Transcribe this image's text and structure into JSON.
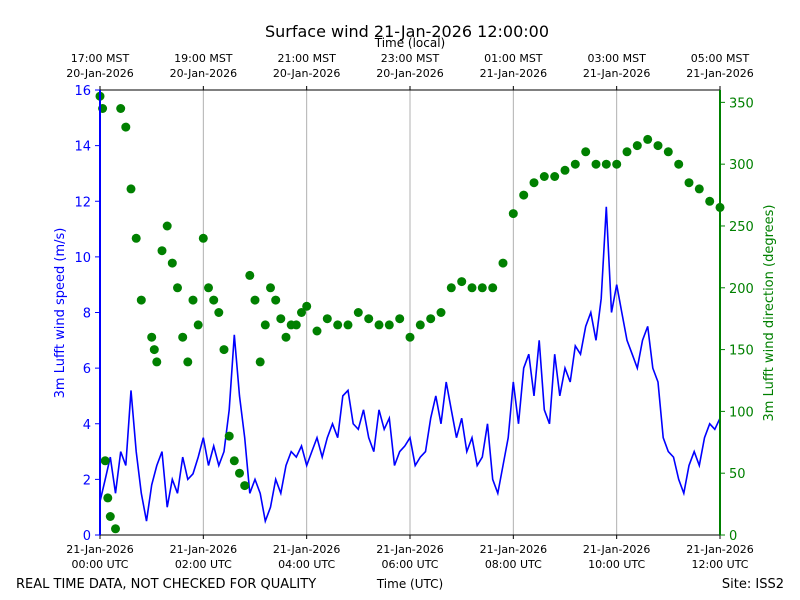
{
  "chart_data": {
    "type": "line+scatter",
    "title": "Surface wind 21-Jan-2026 12:00:00",
    "top_axis_label": "Time (local)",
    "xlabel": "Time (UTC)",
    "ylabel_left": "3m Lufft wind speed (m/s)",
    "ylabel_right": "3m Lufft wind direction (degrees)",
    "xlim_hours": [
      0,
      12
    ],
    "ylim_left": [
      0,
      16
    ],
    "ylim_right": [
      0,
      360
    ],
    "yticks_left": [
      "0",
      "2",
      "4",
      "6",
      "8",
      "10",
      "12",
      "14",
      "16"
    ],
    "yticks_right": [
      "0",
      "50",
      "100",
      "150",
      "200",
      "250",
      "300",
      "350"
    ],
    "grid": "vertical",
    "bottom_ticks": [
      {
        "l1": "21-Jan-2026",
        "l2": "00:00 UTC"
      },
      {
        "l1": "21-Jan-2026",
        "l2": "02:00 UTC"
      },
      {
        "l1": "21-Jan-2026",
        "l2": "04:00 UTC"
      },
      {
        "l1": "21-Jan-2026",
        "l2": "06:00 UTC"
      },
      {
        "l1": "21-Jan-2026",
        "l2": "08:00 UTC"
      },
      {
        "l1": "21-Jan-2026",
        "l2": "10:00 UTC"
      },
      {
        "l1": "21-Jan-2026",
        "l2": "12:00 UTC"
      }
    ],
    "top_ticks": [
      {
        "l1": "17:00 MST",
        "l2": "20-Jan-2026"
      },
      {
        "l1": "19:00 MST",
        "l2": "20-Jan-2026"
      },
      {
        "l1": "21:00 MST",
        "l2": "20-Jan-2026"
      },
      {
        "l1": "23:00 MST",
        "l2": "20-Jan-2026"
      },
      {
        "l1": "01:00 MST",
        "l2": "21-Jan-2026"
      },
      {
        "l1": "03:00 MST",
        "l2": "21-Jan-2026"
      },
      {
        "l1": "05:00 MST",
        "l2": "21-Jan-2026"
      }
    ],
    "series": [
      {
        "name": "3m Lufft wind speed",
        "kind": "line",
        "color": "#0000ff",
        "hours": [
          0,
          0.1,
          0.2,
          0.3,
          0.4,
          0.5,
          0.6,
          0.7,
          0.8,
          0.9,
          1.0,
          1.1,
          1.2,
          1.3,
          1.4,
          1.5,
          1.6,
          1.7,
          1.8,
          1.9,
          2.0,
          2.1,
          2.2,
          2.3,
          2.4,
          2.5,
          2.6,
          2.7,
          2.8,
          2.9,
          3.0,
          3.1,
          3.2,
          3.3,
          3.4,
          3.5,
          3.6,
          3.7,
          3.8,
          3.9,
          4.0,
          4.1,
          4.2,
          4.3,
          4.4,
          4.5,
          4.6,
          4.7,
          4.8,
          4.9,
          5.0,
          5.1,
          5.2,
          5.3,
          5.4,
          5.5,
          5.6,
          5.7,
          5.8,
          5.9,
          6.0,
          6.1,
          6.2,
          6.3,
          6.4,
          6.5,
          6.6,
          6.7,
          6.8,
          6.9,
          7.0,
          7.1,
          7.2,
          7.3,
          7.4,
          7.5,
          7.6,
          7.7,
          7.8,
          7.9,
          8.0,
          8.1,
          8.2,
          8.3,
          8.4,
          8.5,
          8.6,
          8.7,
          8.8,
          8.9,
          9.0,
          9.1,
          9.2,
          9.3,
          9.4,
          9.5,
          9.6,
          9.7,
          9.8,
          9.9,
          10.0,
          10.1,
          10.2,
          10.3,
          10.4,
          10.5,
          10.6,
          10.7,
          10.8,
          10.9,
          11.0,
          11.1,
          11.2,
          11.3,
          11.4,
          11.5,
          11.6,
          11.7,
          11.8,
          11.9,
          12.0
        ],
        "values": [
          1.2,
          2.0,
          2.8,
          1.5,
          3.0,
          2.5,
          5.2,
          3.0,
          1.5,
          0.5,
          1.8,
          2.5,
          3.0,
          1.0,
          2.0,
          1.5,
          2.8,
          2.0,
          2.2,
          2.8,
          3.5,
          2.5,
          3.2,
          2.5,
          3.0,
          4.5,
          7.2,
          5.0,
          3.5,
          1.5,
          2.0,
          1.5,
          0.5,
          1.0,
          2.0,
          1.5,
          2.5,
          3.0,
          2.8,
          3.2,
          2.5,
          3.0,
          3.5,
          2.8,
          3.5,
          4.0,
          3.5,
          5.0,
          5.2,
          4.0,
          3.8,
          4.5,
          3.5,
          3.0,
          4.5,
          3.8,
          4.2,
          2.5,
          3.0,
          3.2,
          3.5,
          2.5,
          2.8,
          3.0,
          4.2,
          5.0,
          4.0,
          5.5,
          4.5,
          3.5,
          4.2,
          3.0,
          3.5,
          2.5,
          2.8,
          4.0,
          2.0,
          1.5,
          2.5,
          3.5,
          5.5,
          4.0,
          6.0,
          6.5,
          5.0,
          7.0,
          4.5,
          4.0,
          6.5,
          5.0,
          6.0,
          5.5,
          6.8,
          6.5,
          7.5,
          8.0,
          7.0,
          8.5,
          11.8,
          8.0,
          9.0,
          8.0,
          7.0,
          6.5,
          6.0,
          7.0,
          7.5,
          6.0,
          5.5,
          3.5,
          3.0,
          2.8,
          2.0,
          1.5,
          2.5,
          3.0,
          2.5,
          3.5,
          4.0,
          3.8,
          4.2
        ]
      },
      {
        "name": "3m Lufft wind direction",
        "kind": "scatter",
        "color": "#008000",
        "hours": [
          0,
          0.05,
          0.1,
          0.15,
          0.2,
          0.3,
          0.4,
          0.5,
          0.6,
          0.7,
          0.8,
          1.0,
          1.05,
          1.1,
          1.2,
          1.3,
          1.4,
          1.5,
          1.6,
          1.7,
          1.8,
          1.9,
          2.0,
          2.1,
          2.2,
          2.3,
          2.4,
          2.5,
          2.6,
          2.7,
          2.8,
          2.9,
          3.0,
          3.1,
          3.2,
          3.3,
          3.4,
          3.5,
          3.6,
          3.7,
          3.8,
          3.9,
          4.0,
          4.2,
          4.4,
          4.6,
          4.8,
          5.0,
          5.2,
          5.4,
          5.6,
          5.8,
          6.0,
          6.2,
          6.4,
          6.6,
          6.8,
          7.0,
          7.2,
          7.4,
          7.6,
          7.8,
          8.0,
          8.2,
          8.4,
          8.6,
          8.8,
          9.0,
          9.2,
          9.4,
          9.6,
          9.8,
          10.0,
          10.2,
          10.4,
          10.6,
          10.8,
          11.0,
          11.2,
          11.4,
          11.6,
          11.8,
          12.0
        ],
        "values": [
          355,
          345,
          60,
          30,
          15,
          5,
          345,
          330,
          280,
          240,
          190,
          160,
          150,
          140,
          230,
          250,
          220,
          200,
          160,
          140,
          190,
          170,
          240,
          200,
          190,
          180,
          150,
          80,
          60,
          50,
          40,
          210,
          190,
          140,
          170,
          200,
          190,
          175,
          160,
          170,
          170,
          180,
          185,
          165,
          175,
          170,
          170,
          180,
          175,
          170,
          170,
          175,
          160,
          170,
          175,
          180,
          200,
          205,
          200,
          200,
          200,
          220,
          260,
          275,
          285,
          290,
          290,
          295,
          300,
          310,
          300,
          300,
          300,
          310,
          315,
          320,
          315,
          310,
          300,
          285,
          280,
          270,
          265
        ]
      }
    ]
  },
  "footer": {
    "left_note": "REAL TIME DATA, NOT CHECKED FOR QUALITY",
    "site": "Site: ISS2"
  }
}
